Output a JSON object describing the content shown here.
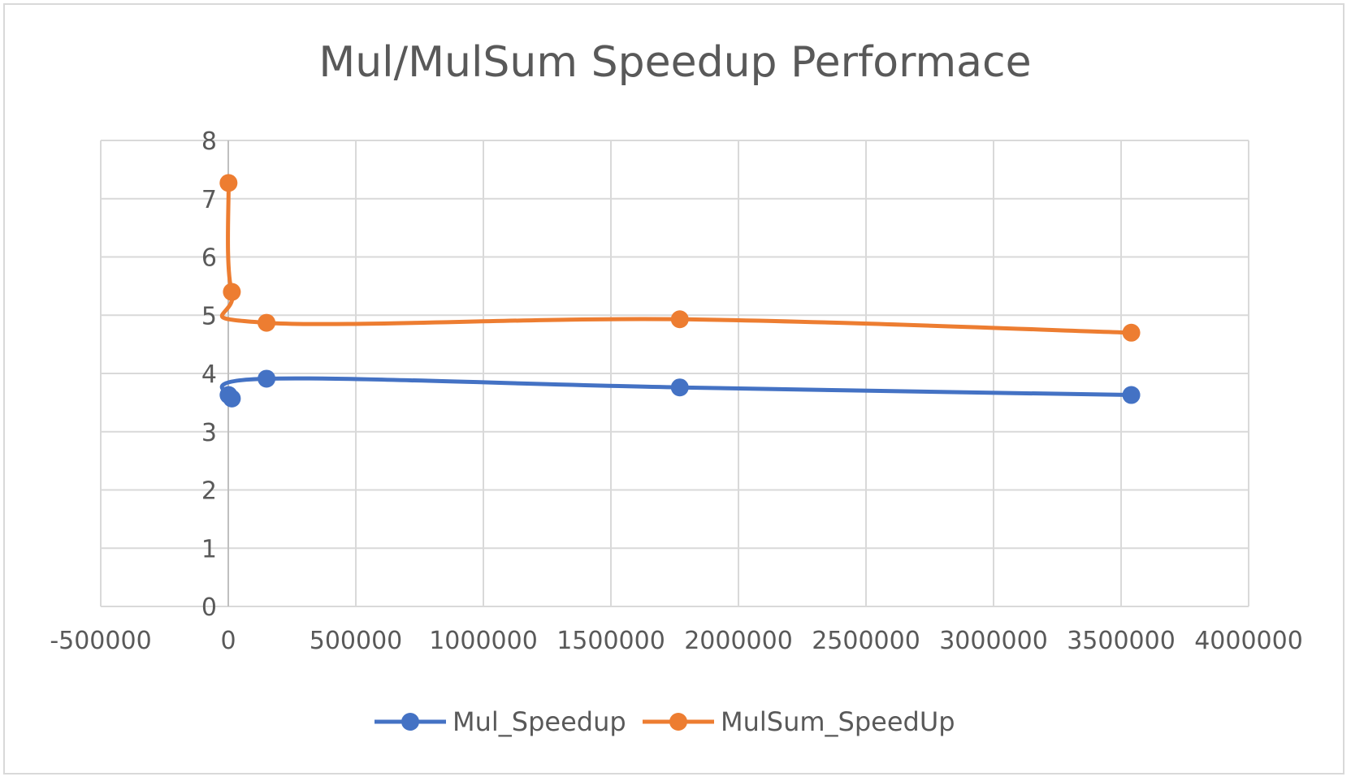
{
  "chart_data": {
    "type": "scatter",
    "title": "Mul/MulSum Speedup Performace",
    "xlabel": "",
    "ylabel": "",
    "xlim": [
      -500000,
      4000000
    ],
    "ylim": [
      0,
      8
    ],
    "xticks": [
      -500000,
      0,
      500000,
      1000000,
      1500000,
      2000000,
      2500000,
      3000000,
      3500000,
      4000000
    ],
    "yticks": [
      0,
      1,
      2,
      3,
      4,
      5,
      6,
      7,
      8
    ],
    "grid": true,
    "smooth_lines": true,
    "legend_position": "bottom",
    "series": [
      {
        "name": "Mul_Speedup",
        "color": "#4472c4",
        "x": [
          1000,
          14000,
          150000,
          1770000,
          3540000
        ],
        "y": [
          3.63,
          3.57,
          3.91,
          3.76,
          3.63
        ]
      },
      {
        "name": "MulSum_SpeedUp",
        "color": "#ed7d31",
        "x": [
          1000,
          14000,
          150000,
          1770000,
          3540000
        ],
        "y": [
          7.27,
          5.4,
          4.87,
          4.93,
          4.7
        ]
      }
    ]
  }
}
